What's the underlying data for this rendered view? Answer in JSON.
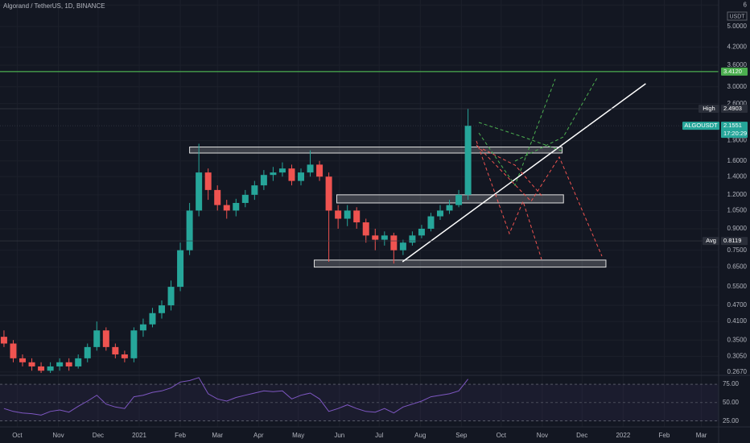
{
  "chart_data": {
    "type": "candlestick",
    "title": "Algorand / TetherUS, 1D, BINANCE",
    "currency": "USDT",
    "log_scale": true,
    "grid": true,
    "up_color": "#26a69a",
    "down_color": "#ef5350",
    "x": [
      -10,
      -3,
      4,
      11,
      18,
      25,
      32,
      39,
      46,
      53,
      60,
      67,
      74,
      81,
      88,
      95,
      102,
      109,
      116,
      123,
      130,
      137,
      144,
      151,
      158,
      165,
      172,
      179,
      186,
      193,
      200,
      207,
      214,
      221,
      228,
      235,
      242,
      249,
      256,
      263,
      270,
      277,
      284,
      291,
      298,
      305,
      312,
      319,
      326,
      333,
      340
    ],
    "open": [
      0.36,
      0.34,
      0.3,
      0.29,
      0.28,
      0.27,
      0.28,
      0.29,
      0.28,
      0.3,
      0.33,
      0.38,
      0.33,
      0.31,
      0.3,
      0.38,
      0.4,
      0.44,
      0.47,
      0.55,
      0.75,
      1.05,
      1.45,
      1.25,
      1.1,
      1.05,
      1.12,
      1.2,
      1.3,
      1.42,
      1.45,
      1.5,
      1.35,
      1.45,
      1.55,
      1.4,
      1.05,
      0.98,
      1.05,
      0.95,
      0.85,
      0.82,
      0.85,
      0.75,
      0.8,
      0.85,
      0.9,
      1.0,
      1.05,
      1.1,
      1.2
    ],
    "high": [
      0.38,
      0.35,
      0.31,
      0.3,
      0.29,
      0.29,
      0.3,
      0.3,
      0.31,
      0.34,
      0.41,
      0.39,
      0.34,
      0.32,
      0.39,
      0.42,
      0.46,
      0.49,
      0.58,
      0.8,
      1.12,
      1.85,
      1.5,
      1.3,
      1.15,
      1.16,
      1.25,
      1.35,
      1.48,
      1.52,
      1.58,
      1.55,
      1.5,
      1.75,
      1.6,
      1.45,
      1.1,
      1.1,
      1.08,
      0.98,
      0.9,
      0.88,
      0.87,
      0.82,
      0.88,
      0.93,
      1.03,
      1.1,
      1.15,
      1.25,
      2.4903
    ],
    "low": [
      0.33,
      0.29,
      0.28,
      0.27,
      0.265,
      0.265,
      0.27,
      0.27,
      0.275,
      0.29,
      0.32,
      0.32,
      0.3,
      0.29,
      0.29,
      0.36,
      0.39,
      0.42,
      0.45,
      0.53,
      0.72,
      1.0,
      1.15,
      1.05,
      0.98,
      1.0,
      1.08,
      1.15,
      1.25,
      1.35,
      1.4,
      1.3,
      1.3,
      1.4,
      1.35,
      0.68,
      0.9,
      0.92,
      0.9,
      0.8,
      0.75,
      0.78,
      0.67,
      0.72,
      0.78,
      0.83,
      0.88,
      0.97,
      1.02,
      1.08,
      1.15
    ],
    "close": [
      0.34,
      0.3,
      0.29,
      0.28,
      0.27,
      0.28,
      0.29,
      0.28,
      0.3,
      0.33,
      0.38,
      0.33,
      0.31,
      0.3,
      0.38,
      0.4,
      0.44,
      0.47,
      0.55,
      0.75,
      1.05,
      1.45,
      1.25,
      1.1,
      1.05,
      1.12,
      1.2,
      1.3,
      1.42,
      1.45,
      1.5,
      1.35,
      1.45,
      1.55,
      1.4,
      1.05,
      0.98,
      1.05,
      0.95,
      0.85,
      0.82,
      0.85,
      0.75,
      0.8,
      0.85,
      0.9,
      1.0,
      1.05,
      1.1,
      1.2,
      2.1551
    ],
    "rsi": [
      42,
      38,
      36,
      35,
      33,
      38,
      40,
      37,
      45,
      52,
      60,
      48,
      44,
      42,
      58,
      60,
      64,
      66,
      70,
      78,
      80,
      84,
      62,
      55,
      52,
      57,
      60,
      63,
      66,
      65,
      66,
      55,
      60,
      63,
      55,
      38,
      42,
      47,
      42,
      38,
      37,
      42,
      36,
      44,
      48,
      52,
      58,
      60,
      62,
      66,
      82
    ],
    "rsi_color": "#7e57c2",
    "xlim": [
      -13,
      529
    ],
    "ylim": [
      0.2614,
      6.26
    ],
    "rsi_ylim": [
      17,
      86
    ],
    "xticks": [
      {
        "value": 0,
        "label": "Oct"
      },
      {
        "value": 31,
        "label": "Nov"
      },
      {
        "value": 61,
        "label": "Dec"
      },
      {
        "value": 92,
        "label": "2021"
      },
      {
        "value": 123,
        "label": "Feb"
      },
      {
        "value": 151,
        "label": "Mar"
      },
      {
        "value": 182,
        "label": "Apr"
      },
      {
        "value": 212,
        "label": "May"
      },
      {
        "value": 243,
        "label": "Jun"
      },
      {
        "value": 273,
        "label": "Jul"
      },
      {
        "value": 304,
        "label": "Aug"
      },
      {
        "value": 335,
        "label": "Sep"
      },
      {
        "value": 365,
        "label": "Oct"
      },
      {
        "value": 396,
        "label": "Nov"
      },
      {
        "value": 426,
        "label": "Dec"
      },
      {
        "value": 457,
        "label": "2022"
      },
      {
        "value": 488,
        "label": "Feb"
      },
      {
        "value": 516,
        "label": "Mar"
      }
    ],
    "yticks": [
      {
        "value": 6,
        "label": "6"
      },
      {
        "value": 5,
        "label": "5.0000"
      },
      {
        "value": 4.2,
        "label": "4.2000"
      },
      {
        "value": 3.6,
        "label": "3.6000"
      },
      {
        "value": 3,
        "label": "3.0000"
      },
      {
        "value": 2.6,
        "label": "2.6000"
      },
      {
        "value": 1.9,
        "label": "1.9000"
      },
      {
        "value": 1.6,
        "label": "1.6000"
      },
      {
        "value": 1.4,
        "label": "1.4000"
      },
      {
        "value": 1.2,
        "label": "1.2000"
      },
      {
        "value": 1.05,
        "label": "1.0500"
      },
      {
        "value": 0.9,
        "label": "0.9000"
      },
      {
        "value": 0.75,
        "label": "0.7500"
      },
      {
        "value": 0.65,
        "label": "0.6500"
      },
      {
        "value": 0.55,
        "label": "0.5500"
      },
      {
        "value": 0.47,
        "label": "0.4700"
      },
      {
        "value": 0.41,
        "label": "0.4100"
      },
      {
        "value": 0.35,
        "label": "0.3500"
      },
      {
        "value": 0.305,
        "label": "0.3050"
      },
      {
        "value": 0.267,
        "label": "0.2670"
      }
    ],
    "rsi_yticks": [
      {
        "value": 75,
        "label": "75.00"
      },
      {
        "value": 50,
        "label": "50.00"
      },
      {
        "value": 25,
        "label": "25.00"
      }
    ],
    "levels": [
      {
        "value": 3.412,
        "label": "3.4120",
        "color": "#4caf50"
      },
      {
        "name": "High",
        "value": 2.4903,
        "label": "2.4903",
        "color": "#2a2e39"
      },
      {
        "name": "ALGOUSDT",
        "value": 2.1551,
        "label": "2.1551",
        "countdown": "17:20:29",
        "color": "#26a69a"
      },
      {
        "name": "Avg",
        "value": 0.8119,
        "label": "0.8119",
        "color": "#2a2e39"
      }
    ],
    "boxes": [
      {
        "x": [
          130,
          411
        ],
        "y": [
          1.71,
          1.8
        ]
      },
      {
        "x": [
          241,
          412
        ],
        "y": [
          1.12,
          1.2
        ]
      },
      {
        "x": [
          224,
          444
        ],
        "y": [
          0.65,
          0.69
        ]
      }
    ],
    "trendline": {
      "x": [
        290.6,
        474
      ],
      "y": [
        0.68,
        3.08
      ]
    }
  }
}
